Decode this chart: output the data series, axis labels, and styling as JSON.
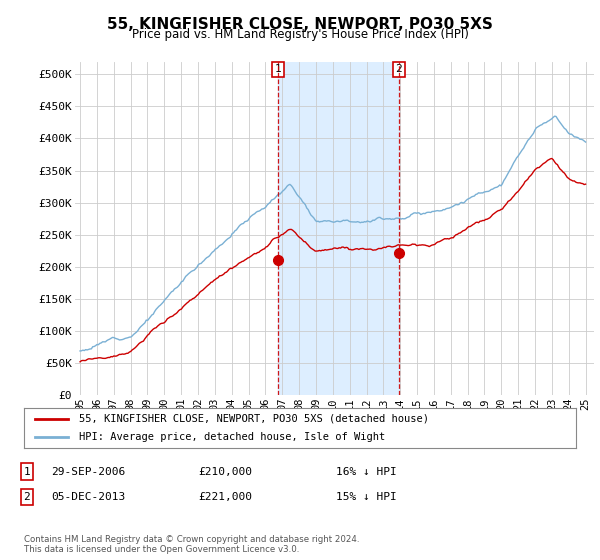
{
  "title": "55, KINGFISHER CLOSE, NEWPORT, PO30 5XS",
  "subtitle": "Price paid vs. HM Land Registry's House Price Index (HPI)",
  "ylabel_ticks": [
    "£0",
    "£50K",
    "£100K",
    "£150K",
    "£200K",
    "£250K",
    "£300K",
    "£350K",
    "£400K",
    "£450K",
    "£500K"
  ],
  "ytick_vals": [
    0,
    50000,
    100000,
    150000,
    200000,
    250000,
    300000,
    350000,
    400000,
    450000,
    500000
  ],
  "ylim": [
    0,
    520000
  ],
  "xlim_start": 1994.7,
  "xlim_end": 2025.5,
  "hpi_color": "#7ab0d4",
  "price_color": "#cc0000",
  "bg_color": "#ffffff",
  "shade_color": "#ddeeff",
  "transaction1_x": 2006.75,
  "transaction1_price": 210000,
  "transaction2_x": 2013.92,
  "transaction2_price": 221000,
  "legend_line1": "55, KINGFISHER CLOSE, NEWPORT, PO30 5XS (detached house)",
  "legend_line2": "HPI: Average price, detached house, Isle of Wight",
  "footer": "Contains HM Land Registry data © Crown copyright and database right 2024.\nThis data is licensed under the Open Government Licence v3.0.",
  "xtick_years": [
    1995,
    1996,
    1997,
    1998,
    1999,
    2000,
    2001,
    2002,
    2003,
    2004,
    2005,
    2006,
    2007,
    2008,
    2009,
    2010,
    2011,
    2012,
    2013,
    2014,
    2015,
    2016,
    2017,
    2018,
    2019,
    2020,
    2021,
    2022,
    2023,
    2024,
    2025
  ]
}
